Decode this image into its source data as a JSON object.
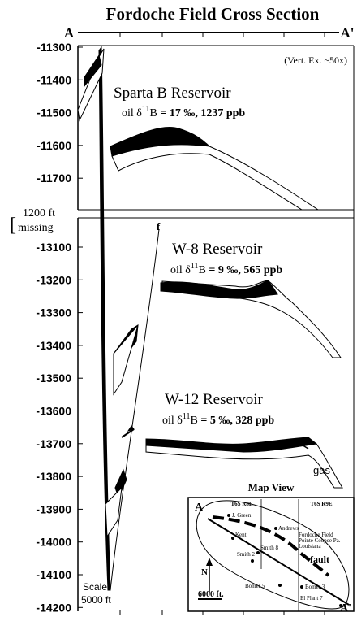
{
  "title": "Fordoche Field Cross Section",
  "section_start": "A",
  "section_end": "A'",
  "vertical_exaggeration": "(Vert. Ex. ~50x)",
  "depth_labels_upper": [
    "-11300",
    "-11400",
    "-11500",
    "-11600",
    "-11700"
  ],
  "missing_gap": [
    "1200 ft",
    "missing"
  ],
  "depth_labels_lower": [
    "-13100",
    "-13200",
    "-13300",
    "-13400",
    "-13500",
    "-13600",
    "-13700",
    "-13800",
    "-13900",
    "-14000",
    "-14100",
    "-14200"
  ],
  "fault_label": "f",
  "reservoirs": [
    {
      "name": "Sparta B Reservoir",
      "prefix": "oil δ",
      "superscript": "11",
      "element": "B",
      "values": " = 17 ‰, 1237 ppb"
    },
    {
      "name": "W-8 Reservoir",
      "prefix": "oil δ",
      "superscript": "11",
      "element": "B",
      "values": " = 9 ‰, 565 ppb"
    },
    {
      "name": "W-12 Reservoir",
      "prefix": "oil δ",
      "superscript": "11",
      "element": "B",
      "values": " = 5 ‰, 328 ppb"
    }
  ],
  "gas_label": "gas",
  "scale": [
    "Scale",
    "5000 ft"
  ],
  "map": {
    "title": "Map View",
    "townships": [
      "T6S R8E",
      "T6S R9E"
    ],
    "end_a": "A",
    "end_a_prime": "A'",
    "north": "N",
    "location": [
      "Fordoche Field",
      "Pointe Coupee Pa.",
      "Louisiana"
    ],
    "wells": [
      "J. Green",
      "Andrews",
      "Kent",
      "Smith 8",
      "Smith 2",
      "Bomer 5",
      "Bomer 3",
      "El Plant 7"
    ],
    "fault": "fault",
    "scale": "6000 ft."
  }
}
